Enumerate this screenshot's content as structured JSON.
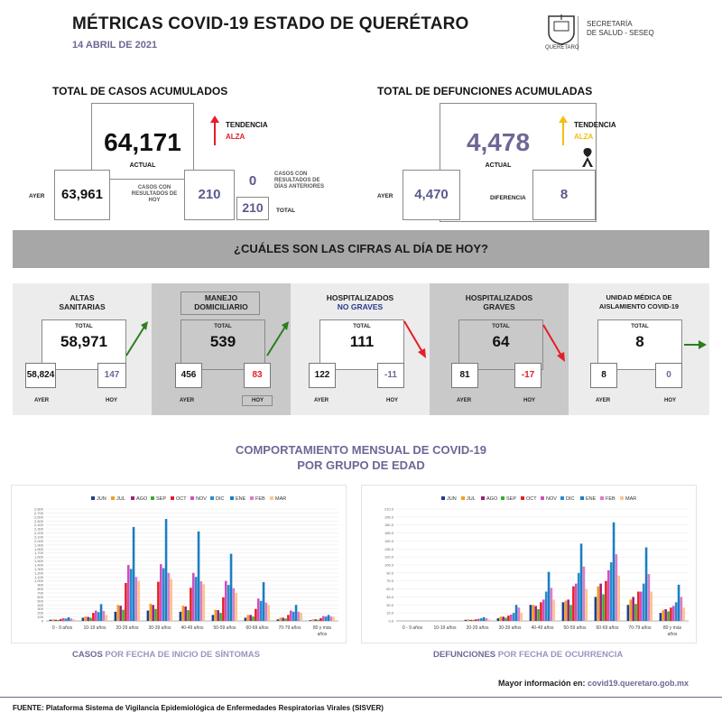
{
  "header": {
    "title": "MÉTRICAS COVID-19 ESTADO DE QUERÉTARO",
    "date": "14 ABRIL  DE 2021",
    "logo_line1": "SECRETARÍA",
    "logo_line2": "DE SALUD - SESEQ",
    "logo_sub": "QUERÉTARO"
  },
  "casos": {
    "heading": "TOTAL DE CASOS ACUMULADOS",
    "actual": "64,171",
    "actual_label": "ACTUAL",
    "trend_label": "TENDENCIA",
    "trend_value": "ALZA",
    "ayer_label": "AYER",
    "ayer": "63,961",
    "hoy_label": "CASOS CON RESULTADOS DE HOY",
    "hoy": "210",
    "anteriores_label": "CASOS CON RESULTADOS DE DÍAS ANTERIORES",
    "anteriores": "0",
    "total_label": "TOTAL",
    "total": "210"
  },
  "defunciones": {
    "heading": "TOTAL DE DEFUNCIONES ACUMULADAS",
    "actual": "4,478",
    "actual_label": "ACTUAL",
    "trend_label": "TENDENCIA",
    "trend_value": "ALZA",
    "ayer_label": "AYER",
    "ayer": "4,470",
    "diff_label": "DIFERENCIA",
    "diff": "8"
  },
  "banner": "¿CUÁLES SON LAS CIFRAS AL DÍA DE HOY?",
  "panels": [
    {
      "t1": "ALTAS",
      "t2": "SANITARIAS",
      "total_label": "TOTAL",
      "total": "58,971",
      "ayer": "58,824",
      "hoy": "147",
      "ayer_label": "AYER",
      "hoy_label": "HOY"
    },
    {
      "t1": "MANEJO",
      "t2": "DOMICILIARIO",
      "total_label": "TOTAL",
      "total": "539",
      "ayer": "456",
      "hoy": "83",
      "ayer_label": "AYER",
      "hoy_label": "HOY"
    },
    {
      "t1": "HOSPITALIZADOS",
      "t2": "NO GRAVES",
      "total_label": "TOTAL",
      "total": "111",
      "ayer": "122",
      "hoy": "-11",
      "ayer_label": "AYER",
      "hoy_label": "HOY"
    },
    {
      "t1": "HOSPITALIZADOS",
      "t2": "GRAVES",
      "total_label": "TOTAL",
      "total": "64",
      "ayer": "81",
      "hoy": "-17",
      "ayer_label": "AYER",
      "hoy_label": "HOY"
    },
    {
      "t1": "UNIDAD MÉDICA DE",
      "t2": "AISLAMIENTO COVID-19",
      "total_label": "TOTAL",
      "total": "8",
      "ayer": "8",
      "hoy": "0",
      "ayer_label": "AYER",
      "hoy_label": "HOY"
    }
  ],
  "section_title_1": "COMPORTAMIENTO MENSUAL DE COVID-19",
  "section_title_2": "POR GRUPO DE EDAD",
  "colors": {
    "JUN": "#1f3e8c",
    "JUL": "#f0a020",
    "AGO": "#9a1f7a",
    "SEP": "#3aaa35",
    "OCT": "#e41e26",
    "NOV": "#d14fc0",
    "DIC": "#2b8ccb",
    "ENE": "#1a7fc1",
    "FEB": "#e07bc9",
    "MAR": "#f8c98a"
  },
  "chart_data": [
    {
      "type": "bar",
      "categories": [
        "0 - 9 años",
        "10-19 años",
        "20-29 años",
        "30-39 años",
        "40-49 años",
        "50-59 años",
        "60-69 años",
        "70-79 años",
        "80 y más años"
      ],
      "legend": [
        "JUN",
        "JUL",
        "AGO",
        "SEP",
        "OCT",
        "NOV",
        "DIC",
        "ENE",
        "FEB",
        "MAR"
      ],
      "ylim": [
        0,
        2800
      ],
      "yticks": [
        "0",
        "100",
        "200",
        "300",
        "400",
        "500",
        "600",
        "700",
        "800",
        "900",
        "1,000",
        "1,100",
        "1,200",
        "1,300",
        "1,400",
        "1,500",
        "1,600",
        "1,700",
        "1,800",
        "1,900",
        "2,000",
        "2,100",
        "2,200",
        "2,300",
        "2,400",
        "2,500",
        "2,600",
        "2,700",
        "2,800"
      ],
      "series": [
        {
          "name": "JUN",
          "values": [
            30,
            80,
            230,
            260,
            230,
            150,
            80,
            40,
            20
          ]
        },
        {
          "name": "JUL",
          "values": [
            40,
            110,
            400,
            430,
            380,
            280,
            150,
            80,
            40
          ]
        },
        {
          "name": "AGO",
          "values": [
            30,
            100,
            380,
            400,
            360,
            270,
            150,
            80,
            40
          ]
        },
        {
          "name": "SEP",
          "values": [
            25,
            80,
            280,
            300,
            270,
            200,
            110,
            60,
            30
          ]
        },
        {
          "name": "OCT",
          "values": [
            50,
            200,
            950,
            980,
            830,
            590,
            300,
            150,
            70
          ]
        },
        {
          "name": "NOV",
          "values": [
            70,
            260,
            1400,
            1420,
            1200,
            1000,
            560,
            260,
            120
          ]
        },
        {
          "name": "DIC",
          "values": [
            60,
            220,
            1300,
            1320,
            1100,
            900,
            500,
            230,
            110
          ]
        },
        {
          "name": "ENE",
          "values": [
            90,
            420,
            2350,
            2550,
            2240,
            1680,
            970,
            400,
            150
          ]
        },
        {
          "name": "FEB",
          "values": [
            60,
            250,
            1100,
            1200,
            990,
            820,
            460,
            230,
            110
          ]
        },
        {
          "name": "MAR",
          "values": [
            40,
            150,
            1000,
            1050,
            920,
            700,
            400,
            200,
            100
          ]
        }
      ],
      "caption_a": "CASOS",
      "caption_b": " POR FECHA DE INICIO DE SÍNTOMAS"
    },
    {
      "type": "bar",
      "categories": [
        "0 - 9 años",
        "10-19 años",
        "20-29 años",
        "30-39 años",
        "40-49 años",
        "50-59 años",
        "60-69 años",
        "70-79 años",
        "80 y más años"
      ],
      "legend": [
        "JUN",
        "JUL",
        "AGO",
        "SEP",
        "OCT",
        "NOV",
        "DIC",
        "ENE",
        "FEB",
        "MAR"
      ],
      "ylim": [
        0,
        210
      ],
      "yticks": [
        "0.0",
        "15.0",
        "30.0",
        "45.0",
        "60.0",
        "75.0",
        "90.0",
        "105.0",
        "120.0",
        "135.0",
        "150.0",
        "165.0",
        "180.0",
        "195.0",
        "210.0"
      ],
      "series": [
        {
          "name": "JUN",
          "values": [
            0,
            0,
            2,
            5,
            30,
            35,
            45,
            30,
            15
          ]
        },
        {
          "name": "JUL",
          "values": [
            0,
            0,
            3,
            8,
            30,
            38,
            65,
            40,
            20
          ]
        },
        {
          "name": "AGO",
          "values": [
            0,
            0,
            2,
            8,
            28,
            40,
            70,
            45,
            22
          ]
        },
        {
          "name": "SEP",
          "values": [
            0,
            0,
            2,
            6,
            22,
            30,
            50,
            32,
            18
          ]
        },
        {
          "name": "OCT",
          "values": [
            0,
            0,
            3,
            10,
            35,
            65,
            75,
            55,
            25
          ]
        },
        {
          "name": "NOV",
          "values": [
            0,
            0,
            4,
            12,
            40,
            70,
            95,
            55,
            28
          ]
        },
        {
          "name": "DIC",
          "values": [
            0,
            0,
            5,
            15,
            55,
            90,
            110,
            70,
            35
          ]
        },
        {
          "name": "ENE",
          "values": [
            0,
            0,
            7,
            30,
            92,
            145,
            185,
            138,
            68
          ]
        },
        {
          "name": "FEB",
          "values": [
            0,
            0,
            5,
            25,
            62,
            102,
            125,
            88,
            45
          ]
        },
        {
          "name": "MAR",
          "values": [
            0,
            0,
            3,
            15,
            40,
            60,
            85,
            55,
            25
          ]
        }
      ],
      "caption_a": "DEFUNCIONES",
      "caption_b": " POR FECHA DE OCURRENCIA"
    }
  ],
  "footer": {
    "more_label": "Mayor información en:",
    "url": "covid19.queretaro.gob.mx",
    "source": "FUENTE: Plataforma Sistema  de Vigilancia Epidemiológica de Enfermedades Respiratorias Virales (SISVER)"
  }
}
